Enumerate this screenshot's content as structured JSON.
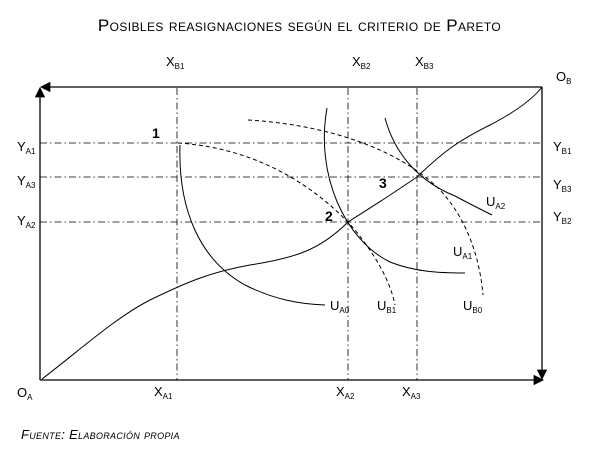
{
  "title": "Posibles reasignaciones según el criterio de Pareto",
  "source": "Fuente: Elaboración propia",
  "origins": {
    "a": {
      "main": "O",
      "sub": "A"
    },
    "b": {
      "main": "O",
      "sub": "B"
    }
  },
  "x_labels_bottom": [
    {
      "main": "X",
      "sub": "A1"
    },
    {
      "main": "X",
      "sub": "A2"
    },
    {
      "main": "X",
      "sub": "A3"
    }
  ],
  "x_labels_top": [
    {
      "main": "X",
      "sub": "B1"
    },
    {
      "main": "X",
      "sub": "B2"
    },
    {
      "main": "X",
      "sub": "B3"
    }
  ],
  "y_labels_left": [
    {
      "main": "Y",
      "sub": "A1"
    },
    {
      "main": "Y",
      "sub": "A3"
    },
    {
      "main": "Y",
      "sub": "A2"
    }
  ],
  "y_labels_right": [
    {
      "main": "Y",
      "sub": "B1"
    },
    {
      "main": "Y",
      "sub": "B3"
    },
    {
      "main": "Y",
      "sub": "B2"
    }
  ],
  "points": [
    "1",
    "2",
    "3"
  ],
  "curve_labels": [
    {
      "main": "U",
      "sub": "A0"
    },
    {
      "main": "U",
      "sub": "B1"
    },
    {
      "main": "U",
      "sub": "B0"
    },
    {
      "main": "U",
      "sub": "A1"
    },
    {
      "main": "U",
      "sub": "A2"
    }
  ]
}
